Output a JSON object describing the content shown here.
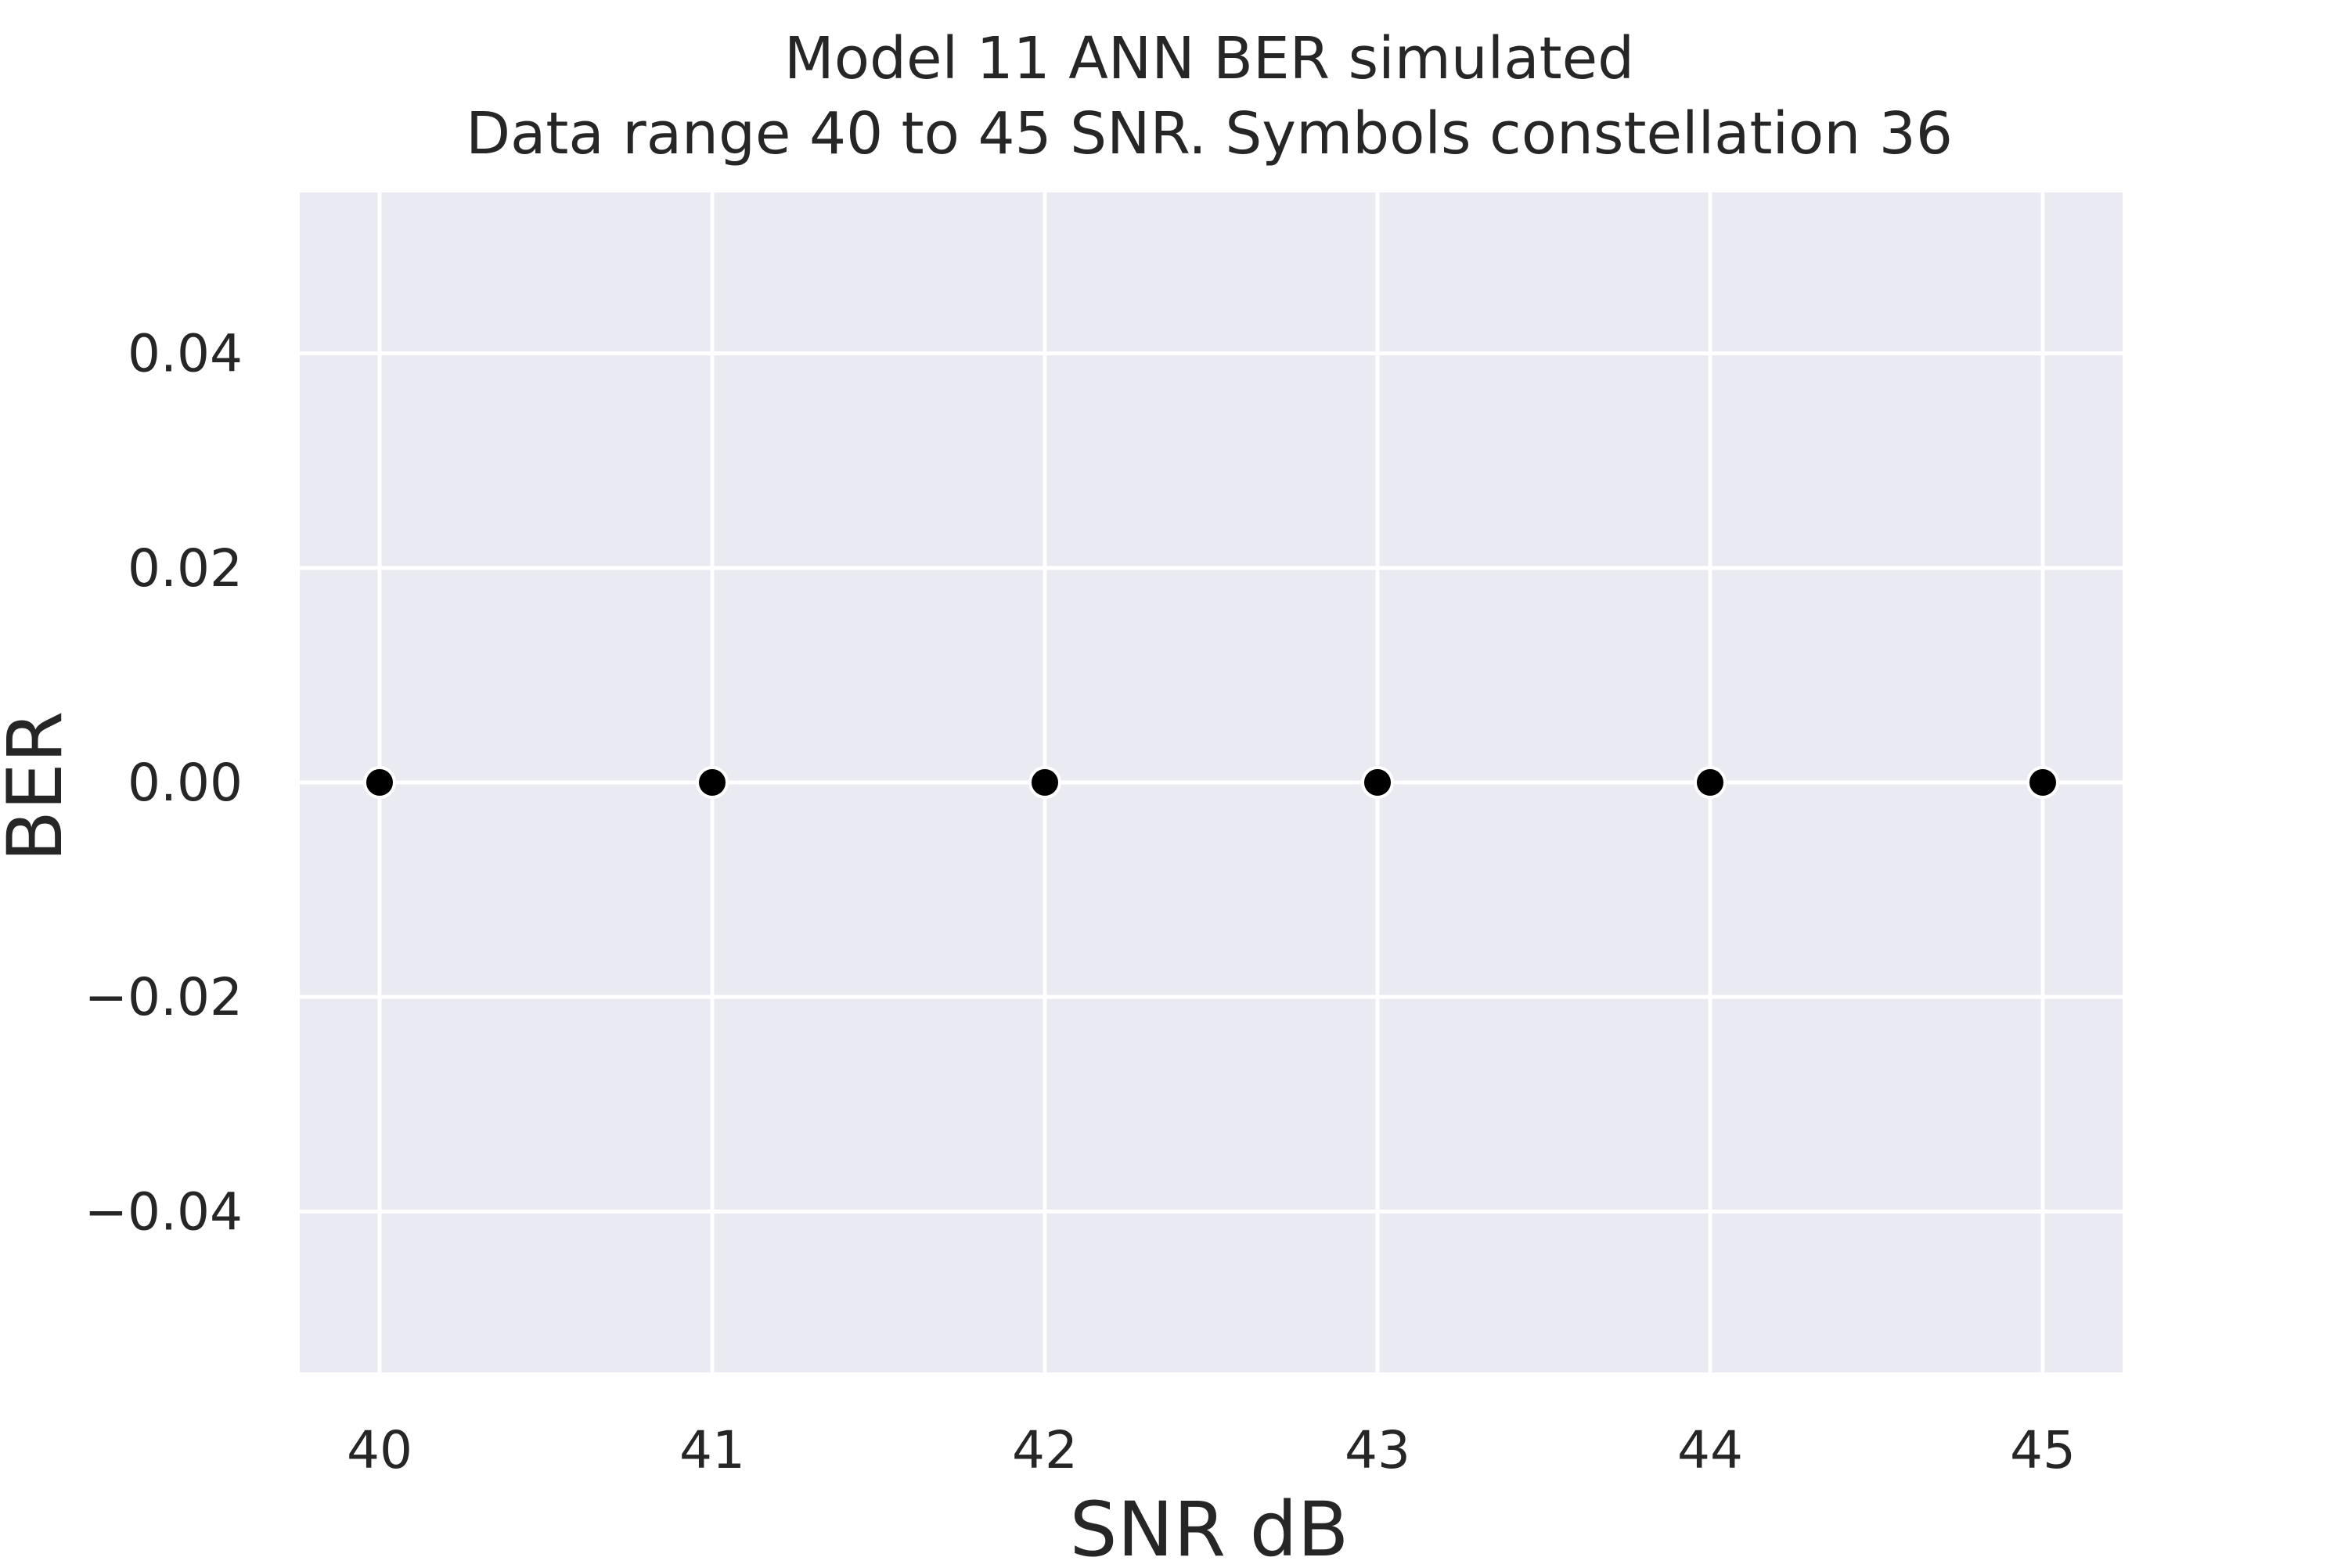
{
  "chart_data": {
    "type": "scatter",
    "title": "Model 11 ANN BER simulated",
    "subtitle": "Data range 40 to 45 SNR. Symbols constellation 36",
    "xlabel": "SNR dB",
    "ylabel": "BER",
    "x": [
      40,
      41,
      42,
      43,
      44,
      45
    ],
    "y": [
      0.0,
      0.0,
      0.0,
      0.0,
      0.0,
      0.0
    ],
    "xlim": [
      39.76,
      45.24
    ],
    "ylim": [
      -0.055,
      0.055
    ],
    "xticks": [
      40,
      41,
      42,
      43,
      44,
      45
    ],
    "xtick_labels": [
      "40",
      "41",
      "42",
      "43",
      "44",
      "45"
    ],
    "yticks": [
      -0.04,
      -0.02,
      0.0,
      0.02,
      0.04
    ],
    "ytick_labels": [
      "−0.04",
      "−0.02",
      "0.00",
      "0.02",
      "0.04"
    ],
    "grid": true,
    "legend": "none",
    "colors": {
      "plot_background": "#EAEAF2",
      "grid": "#FFFFFF",
      "marker_fill": "#000000",
      "marker_edge": "#FFFFFF",
      "text": "#262626"
    }
  }
}
